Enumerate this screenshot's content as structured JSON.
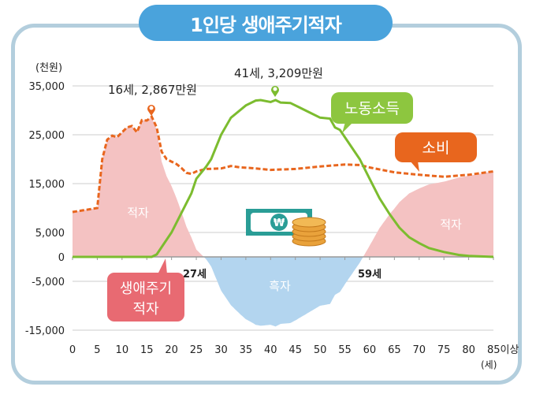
{
  "title": "1인당 생애주기적자",
  "chart_data": {
    "type": "line",
    "title": "1인당 생애주기적자",
    "ylabel": "(천원)",
    "xlabel": "(세)",
    "ylim": [
      -15000,
      35000
    ],
    "yticks": [
      35000,
      25000,
      15000,
      5000,
      0,
      -5000,
      -15000
    ],
    "ytick_labels": [
      "35,000",
      "25,000",
      "15,000",
      "5,000",
      "0",
      "-5,000",
      "-15,000"
    ],
    "xlim": [
      0,
      85
    ],
    "xticks": [
      0,
      5,
      10,
      15,
      20,
      25,
      30,
      35,
      40,
      45,
      50,
      55,
      60,
      65,
      70,
      75,
      80,
      85
    ],
    "xtick_labels": [
      "0",
      "5",
      "10",
      "15",
      "20",
      "25",
      "30",
      "35",
      "40",
      "45",
      "50",
      "55",
      "60",
      "65",
      "70",
      "75",
      "80",
      "85이상"
    ],
    "grid": true,
    "series": [
      {
        "name": "소비",
        "color": "#e8661e",
        "style": "dashed",
        "x": [
          0,
          5,
          6,
          7,
          8,
          9,
          10,
          11,
          12,
          13,
          14,
          15,
          16,
          17,
          18,
          19,
          20,
          21,
          22,
          23,
          24,
          25,
          27,
          30,
          32,
          34,
          36,
          38,
          40,
          45,
          50,
          55,
          58,
          60,
          65,
          70,
          75,
          80,
          85
        ],
        "y": [
          9200,
          10000,
          20000,
          24000,
          24800,
          24500,
          25500,
          26500,
          26800,
          25500,
          28000,
          27900,
          28670,
          26500,
          21500,
          20000,
          19500,
          19000,
          18200,
          17200,
          17000,
          17500,
          18000,
          18100,
          18600,
          18300,
          18200,
          18000,
          17800,
          18000,
          18500,
          18900,
          18800,
          18300,
          17300,
          16800,
          16400,
          16800,
          17500
        ]
      },
      {
        "name": "노동소득",
        "color": "#7cbc2f",
        "style": "solid",
        "x": [
          0,
          16,
          17,
          20,
          22,
          24,
          25,
          27,
          28,
          30,
          32,
          35,
          37,
          38,
          40,
          41,
          42,
          44,
          46,
          48,
          50,
          52,
          53,
          54,
          56,
          58,
          60,
          62,
          64,
          66,
          68,
          70,
          72,
          75,
          78,
          80,
          85
        ],
        "y": [
          0,
          0,
          500,
          5000,
          9000,
          13000,
          16000,
          18500,
          20000,
          25000,
          28500,
          31000,
          32000,
          32100,
          31700,
          32090,
          31600,
          31500,
          30500,
          29500,
          28500,
          28300,
          26500,
          26000,
          23000,
          20000,
          16000,
          12000,
          8800,
          6000,
          4000,
          2800,
          1800,
          1000,
          400,
          200,
          0
        ]
      }
    ],
    "areas": [
      {
        "name": "적자",
        "color": "#f4c2c2"
      },
      {
        "name": "흑자",
        "color": "#b3d5ef"
      }
    ],
    "annotations": {
      "peak_consumption": "16세, 2,867만원",
      "peak_income": "41세, 3,209만원",
      "cross1": "27세",
      "cross2": "59세",
      "deficit_left": "적자",
      "deficit_right": "적자",
      "surplus": "흑자",
      "lifecycle_deficit": [
        "생애주기",
        "적자"
      ],
      "label_income": "노동소득",
      "label_consumption": "소비"
    }
  }
}
